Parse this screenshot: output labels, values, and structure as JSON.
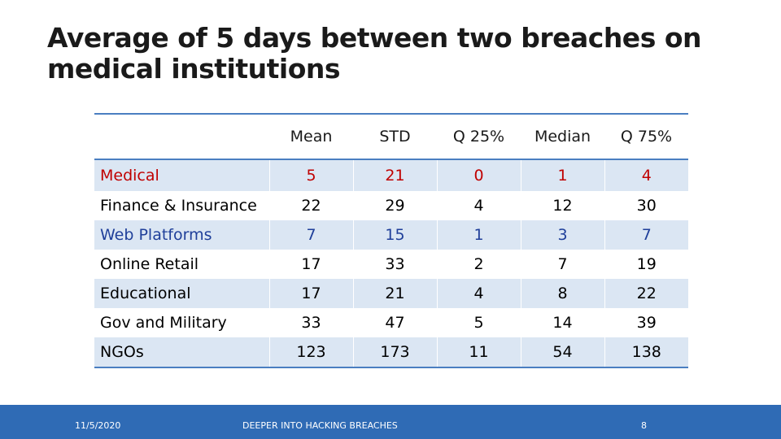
{
  "title": "Average of 5 days between two breaches on medical institutions",
  "table": {
    "headers": [
      "",
      "Mean",
      "STD",
      "Q 25%",
      "Median",
      "Q 75%"
    ],
    "rows": [
      {
        "label": "Medical",
        "values": [
          "5",
          "21",
          "0",
          "1",
          "4"
        ]
      },
      {
        "label": "Finance & Insurance",
        "values": [
          "22",
          "29",
          "4",
          "12",
          "30"
        ]
      },
      {
        "label": "Web Platforms",
        "values": [
          "7",
          "15",
          "1",
          "3",
          "7"
        ]
      },
      {
        "label": "Online Retail",
        "values": [
          "17",
          "33",
          "2",
          "7",
          "19"
        ]
      },
      {
        "label": "Educational",
        "values": [
          "17",
          "21",
          "4",
          "8",
          "22"
        ]
      },
      {
        "label": "Gov and Military",
        "values": [
          "33",
          "47",
          "5",
          "14",
          "39"
        ]
      },
      {
        "label": "NGOs",
        "values": [
          "123",
          "173",
          "11",
          "54",
          "138"
        ]
      }
    ]
  },
  "footer": {
    "date": "11/5/2020",
    "center": "DEEPER INTO HACKING BREACHES",
    "page": "8"
  },
  "colors": {
    "accent": "#4a7ec1",
    "footer_bg": "#2f6bb5",
    "row_shade": "#dbe6f3",
    "medical_text": "#c00000",
    "web_text": "#1f3f9a"
  }
}
